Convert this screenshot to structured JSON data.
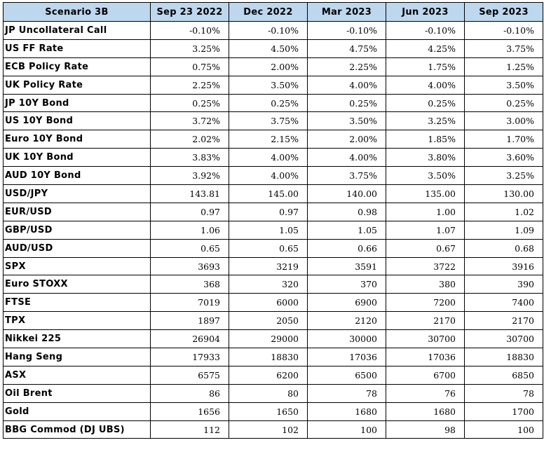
{
  "table": {
    "columns": [
      "Scenario 3B",
      "Sep 23 2022",
      "Dec 2022",
      "Mar 2023",
      "Jun 2023",
      "Sep 2023"
    ],
    "rows": [
      {
        "label": "JP Uncollateral Call",
        "values": [
          "-0.10%",
          "-0.10%",
          "-0.10%",
          "-0.10%",
          "-0.10%"
        ]
      },
      {
        "label": "US FF Rate",
        "values": [
          "3.25%",
          "4.50%",
          "4.75%",
          "4.25%",
          "3.75%"
        ]
      },
      {
        "label": "ECB Policy Rate",
        "values": [
          "0.75%",
          "2.00%",
          "2.25%",
          "1.75%",
          "1.25%"
        ]
      },
      {
        "label": "UK Policy Rate",
        "values": [
          "2.25%",
          "3.50%",
          "4.00%",
          "4.00%",
          "3.50%"
        ]
      },
      {
        "label": "JP 10Y Bond",
        "values": [
          "0.25%",
          "0.25%",
          "0.25%",
          "0.25%",
          "0.25%"
        ]
      },
      {
        "label": "US 10Y Bond",
        "values": [
          "3.72%",
          "3.75%",
          "3.50%",
          "3.25%",
          "3.00%"
        ]
      },
      {
        "label": "Euro 10Y Bond",
        "values": [
          "2.02%",
          "2.15%",
          "2.00%",
          "1.85%",
          "1.70%"
        ]
      },
      {
        "label": "UK 10Y Bond",
        "values": [
          "3.83%",
          "4.00%",
          "4.00%",
          "3.80%",
          "3.60%"
        ]
      },
      {
        "label": "AUD 10Y Bond",
        "values": [
          "3.92%",
          "4.00%",
          "3.75%",
          "3.50%",
          "3.25%"
        ]
      },
      {
        "label": "USD/JPY",
        "values": [
          "143.81",
          "145.00",
          "140.00",
          "135.00",
          "130.00"
        ]
      },
      {
        "label": "EUR/USD",
        "values": [
          "0.97",
          "0.97",
          "0.98",
          "1.00",
          "1.02"
        ]
      },
      {
        "label": "GBP/USD",
        "values": [
          "1.06",
          "1.05",
          "1.05",
          "1.07",
          "1.09"
        ]
      },
      {
        "label": "AUD/USD",
        "values": [
          "0.65",
          "0.65",
          "0.66",
          "0.67",
          "0.68"
        ]
      },
      {
        "label": "SPX",
        "values": [
          "3693",
          "3219",
          "3591",
          "3722",
          "3916"
        ]
      },
      {
        "label": "Euro STOXX",
        "values": [
          "368",
          "320",
          "370",
          "380",
          "390"
        ]
      },
      {
        "label": "FTSE",
        "values": [
          "7019",
          "6000",
          "6900",
          "7200",
          "7400"
        ]
      },
      {
        "label": "TPX",
        "values": [
          "1897",
          "2050",
          "2120",
          "2170",
          "2170"
        ]
      },
      {
        "label": "Nikkei 225",
        "values": [
          "26904",
          "29000",
          "30000",
          "30700",
          "30700"
        ]
      },
      {
        "label": "Hang Seng",
        "values": [
          "17933",
          "18830",
          "17036",
          "17036",
          "18830"
        ]
      },
      {
        "label": "ASX",
        "values": [
          "6575",
          "6200",
          "6500",
          "6700",
          "6850"
        ]
      },
      {
        "label": "Oil Brent",
        "values": [
          "86",
          "80",
          "78",
          "76",
          "78"
        ]
      },
      {
        "label": "Gold",
        "values": [
          "1656",
          "1650",
          "1680",
          "1680",
          "1700"
        ]
      },
      {
        "label": "BBG Commod (DJ UBS)",
        "values": [
          "112",
          "102",
          "100",
          "98",
          "100"
        ]
      }
    ]
  },
  "colors": {
    "header_background": "#bdd7ee",
    "border": "#000000"
  }
}
